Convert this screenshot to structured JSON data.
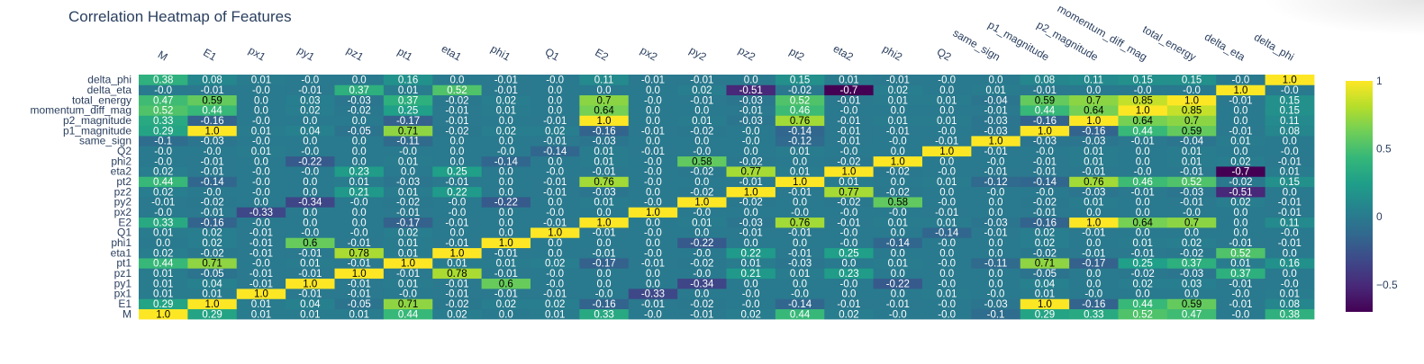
{
  "title": "Correlation Heatmap of Features",
  "chart_data": {
    "type": "heatmap",
    "title": "Correlation Heatmap of Features",
    "x": [
      "M",
      "E1",
      "px1",
      "py1",
      "pz1",
      "pt1",
      "eta1",
      "phi1",
      "Q1",
      "E2",
      "px2",
      "py2",
      "pz2",
      "pt2",
      "eta2",
      "phi2",
      "Q2",
      "same_sign",
      "p1_magnitude",
      "p2_magnitude",
      "momentum_diff_mag",
      "total_energy",
      "delta_eta",
      "delta_phi"
    ],
    "y": [
      "M",
      "E1",
      "px1",
      "py1",
      "pz1",
      "pt1",
      "eta1",
      "phi1",
      "Q1",
      "E2",
      "px2",
      "py2",
      "pz2",
      "pt2",
      "eta2",
      "phi2",
      "Q2",
      "same_sign",
      "p1_magnitude",
      "p2_magnitude",
      "momentum_diff_mag",
      "total_energy",
      "delta_eta",
      "delta_phi"
    ],
    "z": [
      [
        "1.0",
        "0.29",
        "0.01",
        "0.01",
        "0.01",
        "0.44",
        "0.02",
        "0.0",
        "0.01",
        "0.33",
        "-0.0",
        "-0.01",
        "0.02",
        "0.44",
        "0.02",
        "-0.0",
        "-0.0",
        "-0.1",
        "0.29",
        "0.33",
        "0.52",
        "0.47",
        "-0.0",
        "0.38"
      ],
      [
        "0.29",
        "1.0",
        "0.01",
        "0.04",
        "-0.05",
        "0.71",
        "-0.02",
        "0.02",
        "0.02",
        "-0.16",
        "-0.01",
        "-0.02",
        "-0.0",
        "-0.14",
        "-0.01",
        "-0.01",
        "-0.0",
        "-0.03",
        "1.0",
        "-0.16",
        "0.44",
        "0.59",
        "-0.01",
        "0.08"
      ],
      [
        "0.01",
        "0.01",
        "1.0",
        "-0.01",
        "-0.01",
        "-0.0",
        "-0.01",
        "-0.01",
        "-0.01",
        "-0.0",
        "-0.33",
        "0.0",
        "-0.0",
        "-0.0",
        "0.0",
        "0.0",
        "0.01",
        "-0.0",
        "0.01",
        "-0.0",
        "0.0",
        "0.0",
        "-0.0",
        "0.01"
      ],
      [
        "0.01",
        "0.04",
        "-0.01",
        "1.0",
        "-0.01",
        "0.01",
        "-0.01",
        "0.6",
        "-0.0",
        "0.0",
        "0.0",
        "-0.34",
        "0.0",
        "0.0",
        "-0.0",
        "-0.22",
        "-0.0",
        "0.0",
        "0.04",
        "0.0",
        "0.02",
        "0.03",
        "-0.01",
        "-0.0"
      ],
      [
        "0.01",
        "-0.05",
        "-0.01",
        "-0.01",
        "1.0",
        "-0.01",
        "0.78",
        "-0.01",
        "-0.0",
        "0.0",
        "0.0",
        "-0.0",
        "0.21",
        "0.01",
        "0.23",
        "0.0",
        "0.0",
        "0.0",
        "-0.05",
        "0.0",
        "-0.02",
        "-0.03",
        "0.37",
        "0.0"
      ],
      [
        "0.44",
        "0.71",
        "-0.0",
        "0.01",
        "-0.01",
        "1.0",
        "0.01",
        "0.01",
        "0.02",
        "-0.17",
        "-0.01",
        "-0.02",
        "0.01",
        "-0.03",
        "0.0",
        "0.01",
        "-0.0",
        "-0.11",
        "0.71",
        "-0.17",
        "0.25",
        "0.37",
        "0.01",
        "0.16"
      ],
      [
        "0.02",
        "-0.02",
        "-0.01",
        "-0.01",
        "0.78",
        "0.01",
        "1.0",
        "-0.01",
        "0.0",
        "-0.01",
        "-0.0",
        "-0.0",
        "0.22",
        "-0.01",
        "0.25",
        "0.0",
        "0.0",
        "0.0",
        "-0.02",
        "-0.01",
        "-0.01",
        "-0.02",
        "0.52",
        "0.0"
      ],
      [
        "0.0",
        "0.02",
        "-0.01",
        "0.6",
        "-0.01",
        "0.01",
        "-0.01",
        "1.0",
        "0.0",
        "0.0",
        "0.0",
        "-0.22",
        "0.0",
        "0.0",
        "-0.0",
        "-0.14",
        "-0.0",
        "0.0",
        "0.02",
        "0.0",
        "0.01",
        "0.02",
        "-0.01",
        "-0.01"
      ],
      [
        "0.01",
        "0.02",
        "-0.01",
        "-0.0",
        "-0.0",
        "0.02",
        "0.0",
        "0.0",
        "1.0",
        "-0.01",
        "-0.0",
        "0.0",
        "-0.01",
        "-0.01",
        "-0.0",
        "0.0",
        "-0.14",
        "-0.01",
        "0.02",
        "-0.01",
        "0.0",
        "0.0",
        "0.0",
        "-0.0"
      ],
      [
        "0.33",
        "-0.16",
        "-0.0",
        "0.0",
        "0.0",
        "-0.17",
        "-0.01",
        "0.0",
        "-0.01",
        "1.0",
        "0.0",
        "0.01",
        "-0.03",
        "0.76",
        "-0.01",
        "0.01",
        "0.01",
        "-0.03",
        "-0.16",
        "1.0",
        "0.64",
        "0.7",
        "0.0",
        "0.11"
      ],
      [
        "-0.0",
        "-0.01",
        "-0.33",
        "0.0",
        "0.0",
        "-0.01",
        "-0.0",
        "0.0",
        "-0.0",
        "0.0",
        "1.0",
        "-0.0",
        "0.0",
        "-0.0",
        "-0.0",
        "-0.0",
        "-0.01",
        "0.0",
        "-0.01",
        "0.0",
        "0.0",
        "-0.0",
        "0.0",
        "-0.01"
      ],
      [
        "-0.01",
        "-0.02",
        "0.0",
        "-0.34",
        "-0.0",
        "-0.02",
        "-0.0",
        "-0.22",
        "0.0",
        "0.01",
        "-0.0",
        "1.0",
        "-0.02",
        "0.0",
        "-0.02",
        "0.58",
        "-0.0",
        "0.0",
        "-0.02",
        "0.01",
        "0.0",
        "-0.01",
        "0.02",
        "-0.01"
      ],
      [
        "0.02",
        "-0.0",
        "-0.0",
        "0.0",
        "0.21",
        "0.01",
        "0.22",
        "0.0",
        "-0.01",
        "-0.03",
        "0.0",
        "-0.02",
        "1.0",
        "-0.01",
        "0.77",
        "-0.02",
        "0.0",
        "-0.0",
        "-0.0",
        "-0.03",
        "-0.01",
        "-0.03",
        "-0.51",
        "0.0"
      ],
      [
        "0.44",
        "-0.14",
        "-0.0",
        "0.0",
        "0.01",
        "-0.03",
        "-0.01",
        "0.0",
        "-0.01",
        "0.76",
        "-0.0",
        "0.0",
        "-0.01",
        "1.0",
        "0.01",
        "0.0",
        "0.01",
        "-0.12",
        "-0.14",
        "0.76",
        "0.46",
        "0.52",
        "-0.02",
        "0.15"
      ],
      [
        "0.02",
        "-0.01",
        "-0.0",
        "-0.0",
        "0.23",
        "0.0",
        "0.25",
        "0.0",
        "-0.0",
        "-0.01",
        "-0.0",
        "-0.02",
        "0.77",
        "0.01",
        "1.0",
        "-0.02",
        "-0.0",
        "-0.01",
        "-0.01",
        "-0.01",
        "-0.0",
        "-0.01",
        "-0.7",
        "0.01"
      ],
      [
        "-0.0",
        "-0.01",
        "0.0",
        "-0.22",
        "0.0",
        "0.01",
        "0.0",
        "-0.14",
        "0.0",
        "0.01",
        "-0.0",
        "0.58",
        "-0.02",
        "0.0",
        "-0.02",
        "1.0",
        "0.0",
        "-0.0",
        "-0.01",
        "0.01",
        "0.0",
        "0.01",
        "0.02",
        "-0.01"
      ],
      [
        "-0.0",
        "-0.0",
        "0.01",
        "-0.0",
        "0.0",
        "-0.0",
        "0.0",
        "-0.0",
        "-0.14",
        "0.01",
        "-0.01",
        "-0.0",
        "0.0",
        "0.01",
        "-0.0",
        "0.0",
        "1.0",
        "-0.01",
        "-0.0",
        "0.01",
        "0.0",
        "0.01",
        "0.0",
        "-0.0"
      ],
      [
        "-0.1",
        "-0.03",
        "-0.0",
        "0.0",
        "0.0",
        "-0.11",
        "0.0",
        "0.0",
        "-0.01",
        "-0.03",
        "0.0",
        "0.0",
        "-0.0",
        "-0.12",
        "-0.01",
        "-0.0",
        "-0.01",
        "1.0",
        "-0.03",
        "-0.03",
        "-0.01",
        "-0.04",
        "0.01",
        "0.0"
      ],
      [
        "0.29",
        "1.0",
        "0.01",
        "0.04",
        "-0.05",
        "0.71",
        "-0.02",
        "0.02",
        "0.02",
        "-0.16",
        "-0.01",
        "-0.02",
        "-0.0",
        "-0.14",
        "-0.01",
        "-0.01",
        "-0.0",
        "-0.03",
        "1.0",
        "-0.16",
        "0.44",
        "0.59",
        "-0.01",
        "0.08"
      ],
      [
        "0.33",
        "-0.16",
        "-0.0",
        "0.0",
        "0.0",
        "-0.17",
        "-0.01",
        "0.0",
        "-0.01",
        "1.0",
        "0.0",
        "0.01",
        "-0.03",
        "0.76",
        "-0.01",
        "0.01",
        "0.01",
        "-0.03",
        "-0.16",
        "1.0",
        "0.64",
        "0.7",
        "0.0",
        "0.11"
      ],
      [
        "0.52",
        "0.44",
        "0.0",
        "0.02",
        "-0.02",
        "0.25",
        "-0.01",
        "0.01",
        "0.0",
        "0.64",
        "0.0",
        "0.0",
        "-0.01",
        "0.46",
        "-0.0",
        "0.0",
        "0.0",
        "-0.01",
        "0.44",
        "0.64",
        "1.0",
        "0.85",
        "0.0",
        "0.15"
      ],
      [
        "0.47",
        "0.59",
        "0.0",
        "0.03",
        "-0.03",
        "0.37",
        "-0.02",
        "0.02",
        "0.0",
        "0.7",
        "-0.0",
        "-0.01",
        "-0.03",
        "0.52",
        "-0.01",
        "0.01",
        "0.01",
        "-0.04",
        "0.59",
        "0.7",
        "0.85",
        "1.0",
        "-0.01",
        "0.15"
      ],
      [
        "-0.0",
        "-0.01",
        "-0.0",
        "-0.01",
        "0.37",
        "0.01",
        "0.52",
        "-0.01",
        "0.0",
        "0.0",
        "0.0",
        "0.02",
        "-0.51",
        "-0.02",
        "-0.7",
        "0.02",
        "0.0",
        "0.01",
        "-0.01",
        "0.0",
        "-0.0",
        "-0.0",
        "1.0",
        "-0.0"
      ],
      [
        "0.38",
        "0.08",
        "0.01",
        "-0.0",
        "0.0",
        "0.16",
        "0.0",
        "-0.01",
        "-0.0",
        "0.11",
        "-0.01",
        "-0.01",
        "0.0",
        "0.15",
        "0.01",
        "-0.01",
        "-0.0",
        "0.0",
        "0.08",
        "0.11",
        "0.15",
        "0.15",
        "-0.0",
        "1.0"
      ]
    ],
    "zmin": -0.7,
    "zmax": 1.0,
    "colorscale": "viridis",
    "colorbar": {
      "ticks": [
        "1",
        "0.5",
        "0",
        "−0.5"
      ],
      "tick_values": [
        1,
        0.5,
        0,
        -0.5
      ]
    },
    "xlabel": "",
    "ylabel": ""
  }
}
